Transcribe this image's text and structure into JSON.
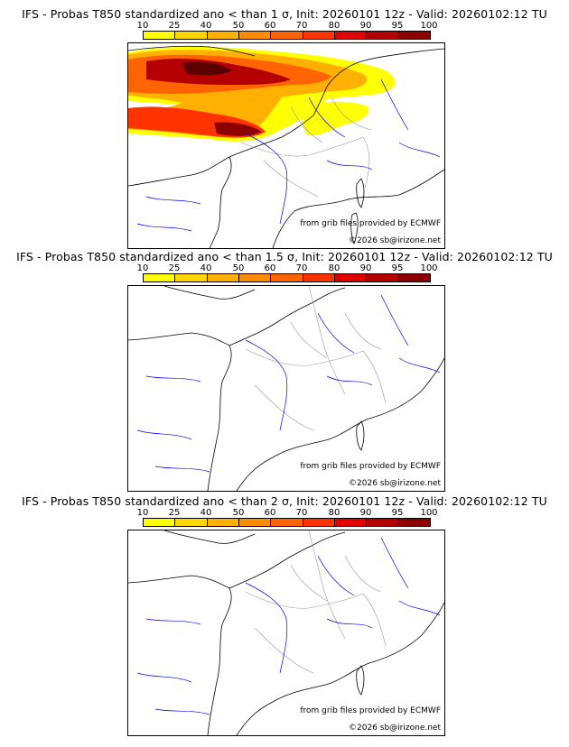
{
  "colors": {
    "scale": [
      "#ffff00",
      "#ffd700",
      "#ffb000",
      "#ff8c00",
      "#ff6400",
      "#ff3200",
      "#e10000",
      "#b40000",
      "#8c0000",
      "#5a0000"
    ],
    "coast": "#000000",
    "rivers": "#0000ff",
    "borders": "#9a9a9a"
  },
  "scale_ticks": [
    "10",
    "25",
    "40",
    "50",
    "60",
    "70",
    "80",
    "90",
    "95",
    "100"
  ],
  "panels": [
    {
      "title": "IFS - Probas T850  standardized ano < than 1 σ, Init: 20260101 12z - Valid: 20260102:12 TU",
      "credit_source": "from grib files provided by ECMWF",
      "credit_copyright": "©2026 sb@irizone.net"
    },
    {
      "title": "IFS - Probas T850  standardized ano < than 1.5 σ, Init: 20260101 12z - Valid: 20260102:12 TU",
      "credit_source": "from grib files provided by ECMWF",
      "credit_copyright": "©2026 sb@irizone.net"
    },
    {
      "title": "IFS - Probas T850  standardized ano < than 2 σ, Init: 20260101 12z - Valid: 20260102:12 TU",
      "credit_source": "from grib files provided by ECMWF",
      "credit_copyright": "©2026 sb@irizone.net"
    }
  ]
}
